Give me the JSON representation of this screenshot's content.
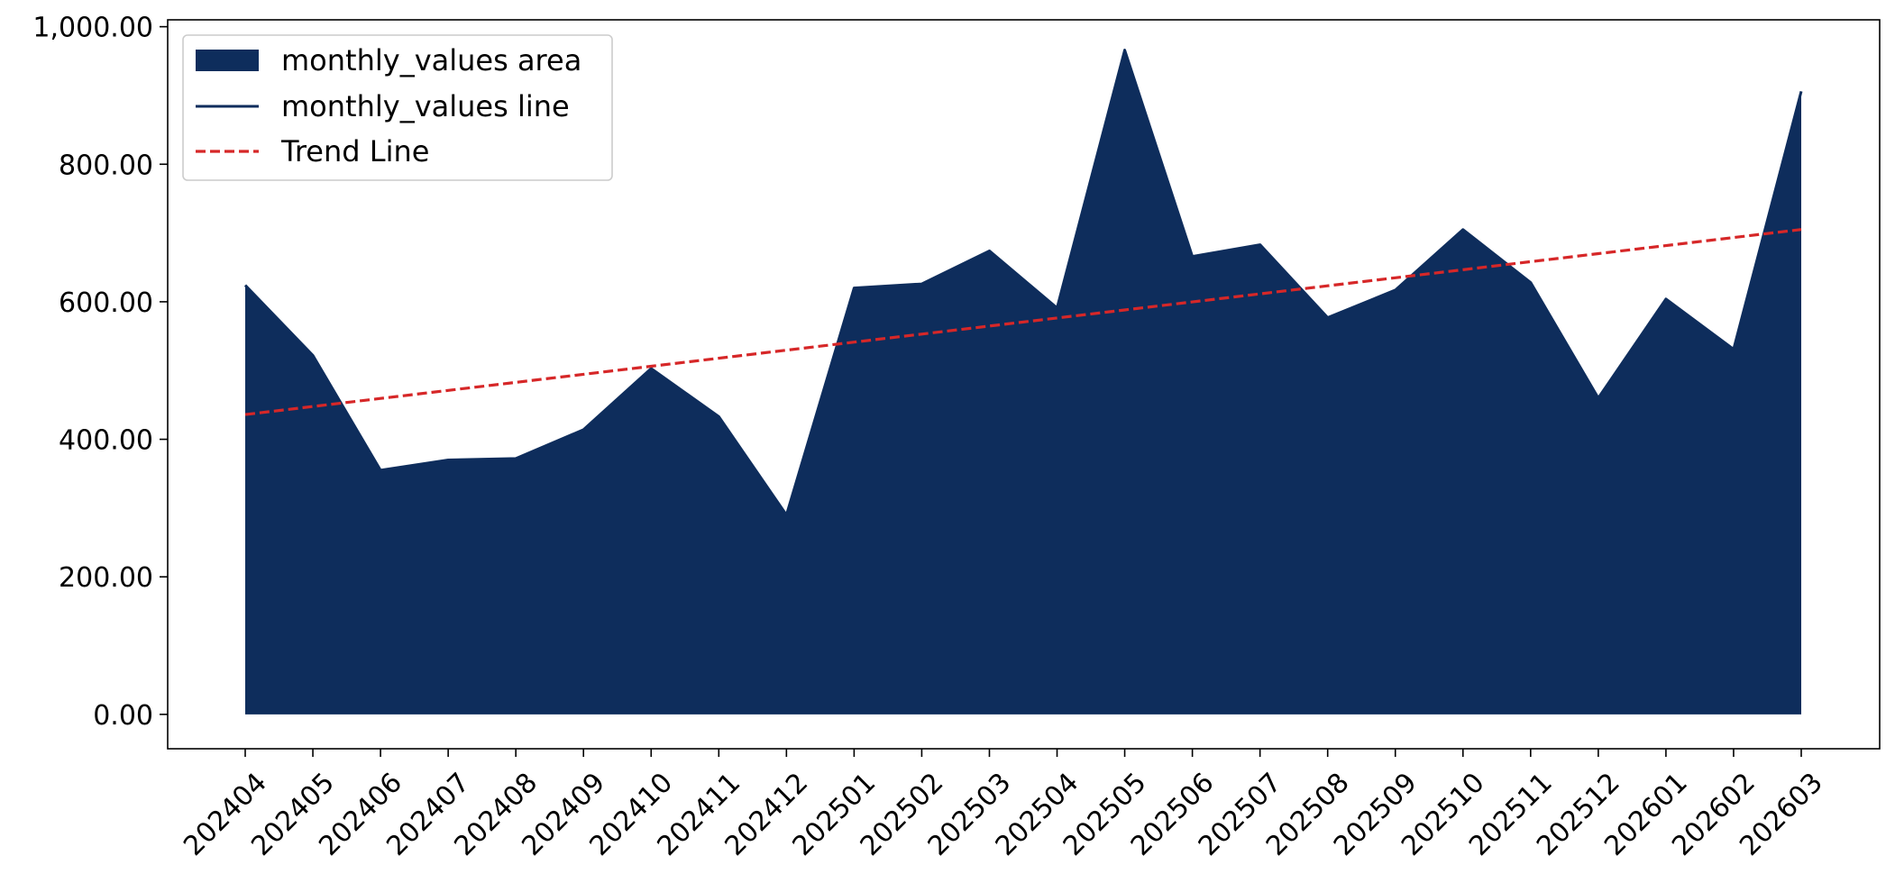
{
  "chart_data": {
    "type": "area",
    "categories": [
      "202404",
      "202405",
      "202406",
      "202407",
      "202408",
      "202409",
      "202410",
      "202411",
      "202412",
      "202501",
      "202502",
      "202503",
      "202504",
      "202505",
      "202506",
      "202507",
      "202508",
      "202509",
      "202510",
      "202511",
      "202512",
      "202601",
      "202602",
      "202603"
    ],
    "series": [
      {
        "name": "monthly_values area",
        "kind": "area",
        "color": "#0e2d5c",
        "values": [
          624,
          522,
          355,
          370,
          372,
          414,
          503,
          433,
          290,
          620,
          626,
          674,
          591,
          966,
          666,
          683,
          577,
          617,
          705,
          628,
          460,
          604,
          531,
          906
        ]
      },
      {
        "name": "monthly_values line",
        "kind": "line",
        "color": "#0e2d5c",
        "values": [
          624,
          522,
          355,
          370,
          372,
          414,
          503,
          433,
          290,
          620,
          626,
          674,
          591,
          966,
          666,
          683,
          577,
          617,
          705,
          628,
          460,
          604,
          531,
          906
        ]
      },
      {
        "name": "Trend Line",
        "kind": "trend",
        "color": "#d62728",
        "style": "dashed",
        "values": [
          436.0,
          447.7,
          459.4,
          471.1,
          482.8,
          494.5,
          506.2,
          517.9,
          529.6,
          541.3,
          553.0,
          564.7,
          576.4,
          588.1,
          599.8,
          611.5,
          623.2,
          634.9,
          646.6,
          658.3,
          670.0,
          681.7,
          693.4,
          705.1
        ]
      }
    ],
    "y_ticks": [
      "0.00",
      "200.00",
      "400.00",
      "600.00",
      "800.00",
      "1,000.00"
    ],
    "y_tick_values": [
      0,
      200,
      400,
      600,
      800,
      1000
    ],
    "ylim": [
      -50,
      1010
    ],
    "title": "",
    "xlabel": "",
    "ylabel": "",
    "grid": false,
    "legend_position": "upper-left"
  }
}
